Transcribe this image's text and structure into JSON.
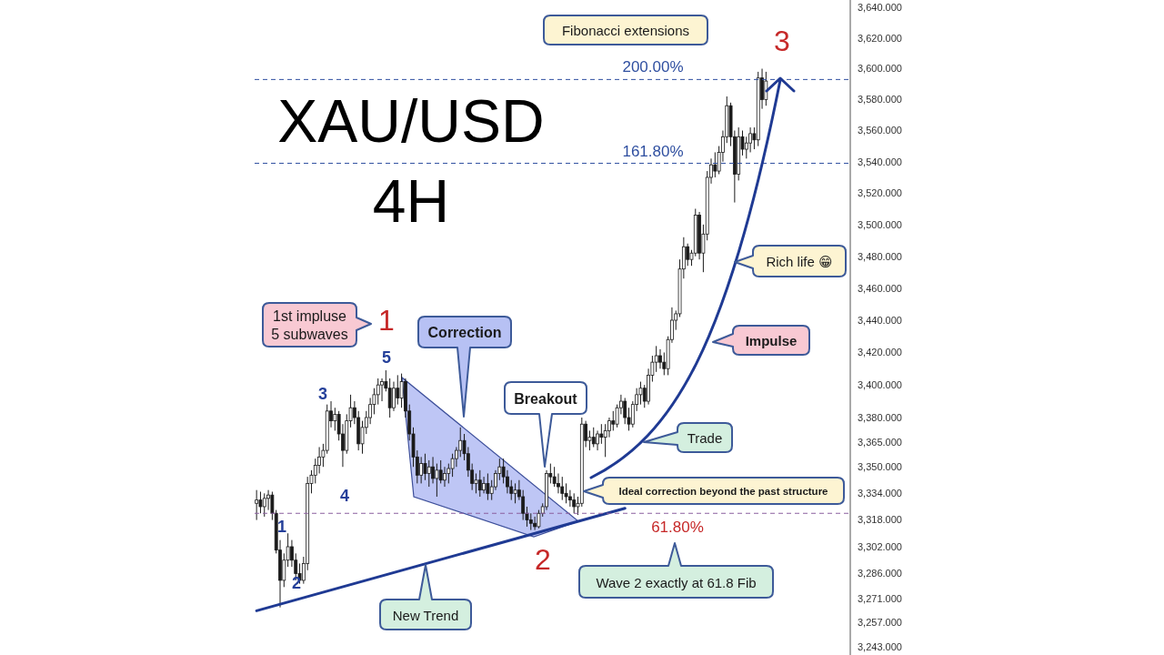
{
  "chart_data": {
    "type": "candlestick",
    "title": "XAU/USD",
    "subtitle": "4H",
    "categories": [
      null,
      null,
      null,
      null,
      null,
      null,
      null,
      null,
      null,
      null,
      null,
      null,
      null,
      null,
      null,
      null,
      null,
      null,
      null,
      null,
      null,
      null,
      null,
      null,
      null,
      null,
      null,
      null,
      null,
      null,
      null,
      null,
      null,
      null,
      null,
      null,
      null,
      null,
      null,
      null,
      null,
      null,
      null,
      null,
      null,
      null,
      null,
      null,
      null,
      null,
      null,
      null,
      null,
      null,
      null,
      null,
      null,
      null,
      null,
      null,
      null,
      null,
      null,
      null,
      null,
      null,
      null,
      null,
      null,
      null,
      null,
      null,
      null,
      null,
      null,
      null,
      null,
      null,
      null,
      null,
      null,
      null,
      null,
      null,
      null,
      null,
      null,
      null,
      null,
      null,
      null,
      null,
      null,
      null,
      null,
      null,
      null,
      null,
      null,
      null,
      null,
      null,
      null,
      null,
      null,
      null,
      null,
      null,
      null,
      null,
      null,
      null,
      null,
      null,
      null,
      null,
      null,
      null,
      null,
      null,
      null,
      null,
      null,
      null,
      null,
      null,
      null,
      null,
      null,
      null,
      null,
      null,
      null,
      null,
      null,
      null,
      null,
      null,
      null,
      null,
      null,
      null,
      null,
      null,
      null,
      null,
      null,
      null,
      null,
      null,
      null,
      null
    ],
    "ohlc": [
      [
        3328,
        3336,
        3318,
        3330
      ],
      [
        3330,
        3335,
        3322,
        3326
      ],
      [
        3326,
        3334,
        3320,
        3331
      ],
      [
        3331,
        3336,
        3324,
        3333
      ],
      [
        3333,
        3335,
        3318,
        3322
      ],
      [
        3322,
        3324,
        3298,
        3300
      ],
      [
        3300,
        3306,
        3266,
        3282
      ],
      [
        3282,
        3298,
        3278,
        3294
      ],
      [
        3294,
        3310,
        3290,
        3302
      ],
      [
        3302,
        3306,
        3290,
        3294
      ],
      [
        3294,
        3298,
        3282,
        3286
      ],
      [
        3286,
        3292,
        3280,
        3282
      ],
      [
        3282,
        3296,
        3280,
        3292
      ],
      [
        3292,
        3344,
        3288,
        3340
      ],
      [
        3340,
        3348,
        3334,
        3345
      ],
      [
        3345,
        3355,
        3340,
        3351
      ],
      [
        3351,
        3362,
        3346,
        3356
      ],
      [
        3356,
        3364,
        3350,
        3360
      ],
      [
        3360,
        3388,
        3358,
        3384
      ],
      [
        3384,
        3390,
        3374,
        3378
      ],
      [
        3378,
        3386,
        3372,
        3382
      ],
      [
        3382,
        3384,
        3366,
        3370
      ],
      [
        3370,
        3376,
        3350,
        3360
      ],
      [
        3360,
        3382,
        3358,
        3378
      ],
      [
        3378,
        3394,
        3374,
        3386
      ],
      [
        3386,
        3390,
        3376,
        3380
      ],
      [
        3380,
        3384,
        3360,
        3364
      ],
      [
        3364,
        3378,
        3358,
        3374
      ],
      [
        3374,
        3384,
        3370,
        3380
      ],
      [
        3380,
        3392,
        3376,
        3388
      ],
      [
        3388,
        3398,
        3382,
        3394
      ],
      [
        3394,
        3404,
        3388,
        3400
      ],
      [
        3400,
        3404,
        3390,
        3402
      ],
      [
        3402,
        3409,
        3396,
        3398
      ],
      [
        3398,
        3404,
        3380,
        3386
      ],
      [
        3386,
        3402,
        3384,
        3398
      ],
      [
        3398,
        3406,
        3388,
        3392
      ],
      [
        3392,
        3407,
        3386,
        3402
      ],
      [
        3402,
        3404,
        3380,
        3384
      ],
      [
        3384,
        3388,
        3366,
        3370
      ],
      [
        3370,
        3374,
        3350,
        3356
      ],
      [
        3356,
        3360,
        3340,
        3345
      ],
      [
        3345,
        3356,
        3340,
        3352
      ],
      [
        3352,
        3358,
        3342,
        3346
      ],
      [
        3346,
        3354,
        3338,
        3350
      ],
      [
        3350,
        3356,
        3340,
        3343
      ],
      [
        3343,
        3352,
        3332,
        3348
      ],
      [
        3348,
        3354,
        3340,
        3342
      ],
      [
        3342,
        3350,
        3338,
        3346
      ],
      [
        3346,
        3352,
        3340,
        3349
      ],
      [
        3349,
        3358,
        3344,
        3355
      ],
      [
        3355,
        3362,
        3350,
        3360
      ],
      [
        3360,
        3374,
        3356,
        3366
      ],
      [
        3366,
        3370,
        3354,
        3358
      ],
      [
        3358,
        3362,
        3344,
        3348
      ],
      [
        3348,
        3352,
        3336,
        3340
      ],
      [
        3340,
        3346,
        3334,
        3342
      ],
      [
        3342,
        3348,
        3332,
        3336
      ],
      [
        3336,
        3344,
        3334,
        3340
      ],
      [
        3340,
        3346,
        3330,
        3334
      ],
      [
        3334,
        3342,
        3330,
        3338
      ],
      [
        3338,
        3348,
        3336,
        3346
      ],
      [
        3346,
        3355,
        3342,
        3350
      ],
      [
        3350,
        3355,
        3340,
        3344
      ],
      [
        3344,
        3348,
        3334,
        3338
      ],
      [
        3338,
        3342,
        3330,
        3334
      ],
      [
        3334,
        3340,
        3328,
        3336
      ],
      [
        3336,
        3342,
        3330,
        3332
      ],
      [
        3332,
        3336,
        3318,
        3322
      ],
      [
        3322,
        3326,
        3314,
        3318
      ],
      [
        3318,
        3322,
        3312,
        3316
      ],
      [
        3316,
        3320,
        3312,
        3314
      ],
      [
        3314,
        3324,
        3313,
        3322
      ],
      [
        3322,
        3328,
        3320,
        3326
      ],
      [
        3326,
        3348,
        3324,
        3346
      ],
      [
        3346,
        3352,
        3340,
        3344
      ],
      [
        3344,
        3350,
        3338,
        3340
      ],
      [
        3340,
        3346,
        3334,
        3338
      ],
      [
        3338,
        3344,
        3330,
        3334
      ],
      [
        3334,
        3340,
        3328,
        3332
      ],
      [
        3332,
        3336,
        3326,
        3330
      ],
      [
        3330,
        3334,
        3322,
        3326
      ],
      [
        3326,
        3332,
        3321,
        3328
      ],
      [
        3328,
        3380,
        3326,
        3376
      ],
      [
        3376,
        3378,
        3362,
        3366
      ],
      [
        3366,
        3372,
        3360,
        3368
      ],
      [
        3368,
        3374,
        3362,
        3364
      ],
      [
        3364,
        3372,
        3360,
        3370
      ],
      [
        3370,
        3376,
        3364,
        3368
      ],
      [
        3368,
        3376,
        3356,
        3372
      ],
      [
        3372,
        3380,
        3368,
        3378
      ],
      [
        3378,
        3384,
        3372,
        3376
      ],
      [
        3376,
        3388,
        3374,
        3386
      ],
      [
        3386,
        3394,
        3382,
        3390
      ],
      [
        3390,
        3392,
        3376,
        3380
      ],
      [
        3380,
        3386,
        3372,
        3376
      ],
      [
        3376,
        3390,
        3374,
        3388
      ],
      [
        3388,
        3398,
        3384,
        3394
      ],
      [
        3394,
        3402,
        3388,
        3398
      ],
      [
        3398,
        3400,
        3386,
        3390
      ],
      [
        3390,
        3410,
        3388,
        3406
      ],
      [
        3406,
        3418,
        3402,
        3414
      ],
      [
        3414,
        3424,
        3408,
        3418
      ],
      [
        3418,
        3422,
        3410,
        3414
      ],
      [
        3414,
        3420,
        3406,
        3410
      ],
      [
        3410,
        3430,
        3406,
        3428
      ],
      [
        3428,
        3448,
        3426,
        3440
      ],
      [
        3440,
        3446,
        3434,
        3444
      ],
      [
        3444,
        3478,
        3442,
        3472
      ],
      [
        3472,
        3492,
        3466,
        3486
      ],
      [
        3486,
        3488,
        3474,
        3478
      ],
      [
        3478,
        3484,
        3474,
        3482
      ],
      [
        3482,
        3510,
        3480,
        3506
      ],
      [
        3506,
        3508,
        3478,
        3482
      ],
      [
        3482,
        3500,
        3470,
        3494
      ],
      [
        3494,
        3534,
        3490,
        3530
      ],
      [
        3530,
        3542,
        3526,
        3538
      ],
      [
        3538,
        3546,
        3530,
        3534
      ],
      [
        3534,
        3550,
        3532,
        3546
      ],
      [
        3546,
        3560,
        3540,
        3556
      ],
      [
        3556,
        3582,
        3552,
        3576
      ],
      [
        3576,
        3578,
        3550,
        3556
      ],
      [
        3556,
        3560,
        3514,
        3532
      ],
      [
        3532,
        3562,
        3528,
        3556
      ],
      [
        3556,
        3560,
        3544,
        3548
      ],
      [
        3548,
        3556,
        3542,
        3552
      ],
      [
        3552,
        3562,
        3546,
        3558
      ],
      [
        3558,
        3562,
        3548,
        3554
      ],
      [
        3554,
        3598,
        3550,
        3594
      ],
      [
        3594,
        3600,
        3574,
        3580
      ],
      [
        3580,
        3598,
        3576,
        3592
      ],
      null,
      null,
      null,
      null,
      null,
      null,
      null,
      null,
      null,
      null,
      null,
      null,
      null,
      null,
      null,
      null,
      null,
      null,
      null,
      null,
      null
    ],
    "color": "#1a1a1a",
    "series": [
      {
        "type": "line",
        "color": "#1f3a93",
        "values": [
          3264,
          null,
          null,
          null,
          null,
          null,
          null,
          null,
          null,
          null,
          null,
          null,
          null,
          null,
          null,
          null,
          null,
          null,
          null,
          null,
          null,
          null,
          null,
          null,
          null,
          null,
          null,
          null,
          null,
          null,
          null,
          null,
          null,
          null,
          null,
          null,
          null,
          null,
          null,
          null,
          null,
          null,
          null,
          null,
          null,
          null,
          null,
          null,
          null,
          null,
          null,
          null,
          null,
          null,
          null,
          null,
          null,
          null,
          null,
          null,
          null,
          null,
          null,
          null,
          null,
          null,
          null,
          null,
          null,
          null,
          null,
          null,
          null,
          null,
          null,
          null,
          null,
          null,
          null,
          null,
          null,
          null,
          null,
          null,
          null,
          null,
          null,
          null,
          null,
          null,
          null,
          null,
          null,
          null,
          3325,
          null,
          null,
          null,
          null,
          null,
          null,
          null,
          null,
          null,
          null,
          null,
          null,
          null,
          null,
          null,
          null,
          null,
          null,
          null,
          null,
          null,
          null,
          null,
          null,
          null,
          null,
          null,
          null,
          null,
          null,
          null,
          null,
          null,
          null,
          null,
          null,
          null,
          null,
          null,
          null,
          null,
          null,
          null,
          null,
          null,
          null,
          null,
          null,
          null,
          null,
          null,
          null,
          null,
          null,
          null,
          null,
          null
        ]
      }
    ],
    "log": true,
    "ylim": [
      3238,
      3645
    ],
    "yticks": [
      {
        "value": 3640,
        "label": "3,640.000"
      },
      {
        "value": 3620,
        "label": "3,620.000"
      },
      {
        "value": 3600,
        "label": "3,600.000"
      },
      {
        "value": 3580,
        "label": "3,580.000"
      },
      {
        "value": 3560,
        "label": "3,560.000"
      },
      {
        "value": 3540,
        "label": "3,540.000"
      },
      {
        "value": 3520,
        "label": "3,520.000"
      },
      {
        "value": 3500,
        "label": "3,500.000"
      },
      {
        "value": 3480,
        "label": "3,480.000"
      },
      {
        "value": 3460,
        "label": "3,460.000"
      },
      {
        "value": 3440,
        "label": "3,440.000"
      },
      {
        "value": 3420,
        "label": "3,420.000"
      },
      {
        "value": 3400,
        "label": "3,400.000"
      },
      {
        "value": 3380,
        "label": "3,380.000"
      },
      {
        "value": 3365,
        "label": "3,365.000"
      },
      {
        "value": 3350,
        "label": "3,350.000"
      },
      {
        "value": 3334,
        "label": "3,334.000"
      },
      {
        "value": 3318,
        "label": "3,318.000"
      },
      {
        "value": 3302,
        "label": "3,302.000"
      },
      {
        "value": 3286,
        "label": "3,286.000"
      },
      {
        "value": 3271,
        "label": "3,271.000"
      },
      {
        "value": 3257,
        "label": "3,257.000"
      },
      {
        "value": 3243,
        "label": "3,243.000"
      }
    ],
    "tick_labels": "y",
    "ref_lines": [
      {
        "axis": "y",
        "value": 3593,
        "color": "#2f4fa0",
        "line_style": "dashed"
      },
      {
        "axis": "y",
        "value": 3539,
        "color": "#2f4fa0",
        "line_style": "dashed"
      },
      {
        "axis": "y",
        "value": 3322,
        "color": "#8a5f9e",
        "line_style": "dashed"
      }
    ],
    "annotations": [
      "Fibonacci extensions",
      "3",
      "Rich life 😁",
      "Impulse",
      "Trade",
      "Ideal correction beyond the past structure",
      "Wave 2 exactly at 61.8 Fib",
      "2",
      "New Trend",
      "Breakout",
      "Correction",
      "1st impluse\n5 subwaves",
      "1",
      "5",
      "3",
      "4",
      "1",
      "2",
      "200.00%",
      "161.80%",
      "61.80%"
    ]
  }
}
